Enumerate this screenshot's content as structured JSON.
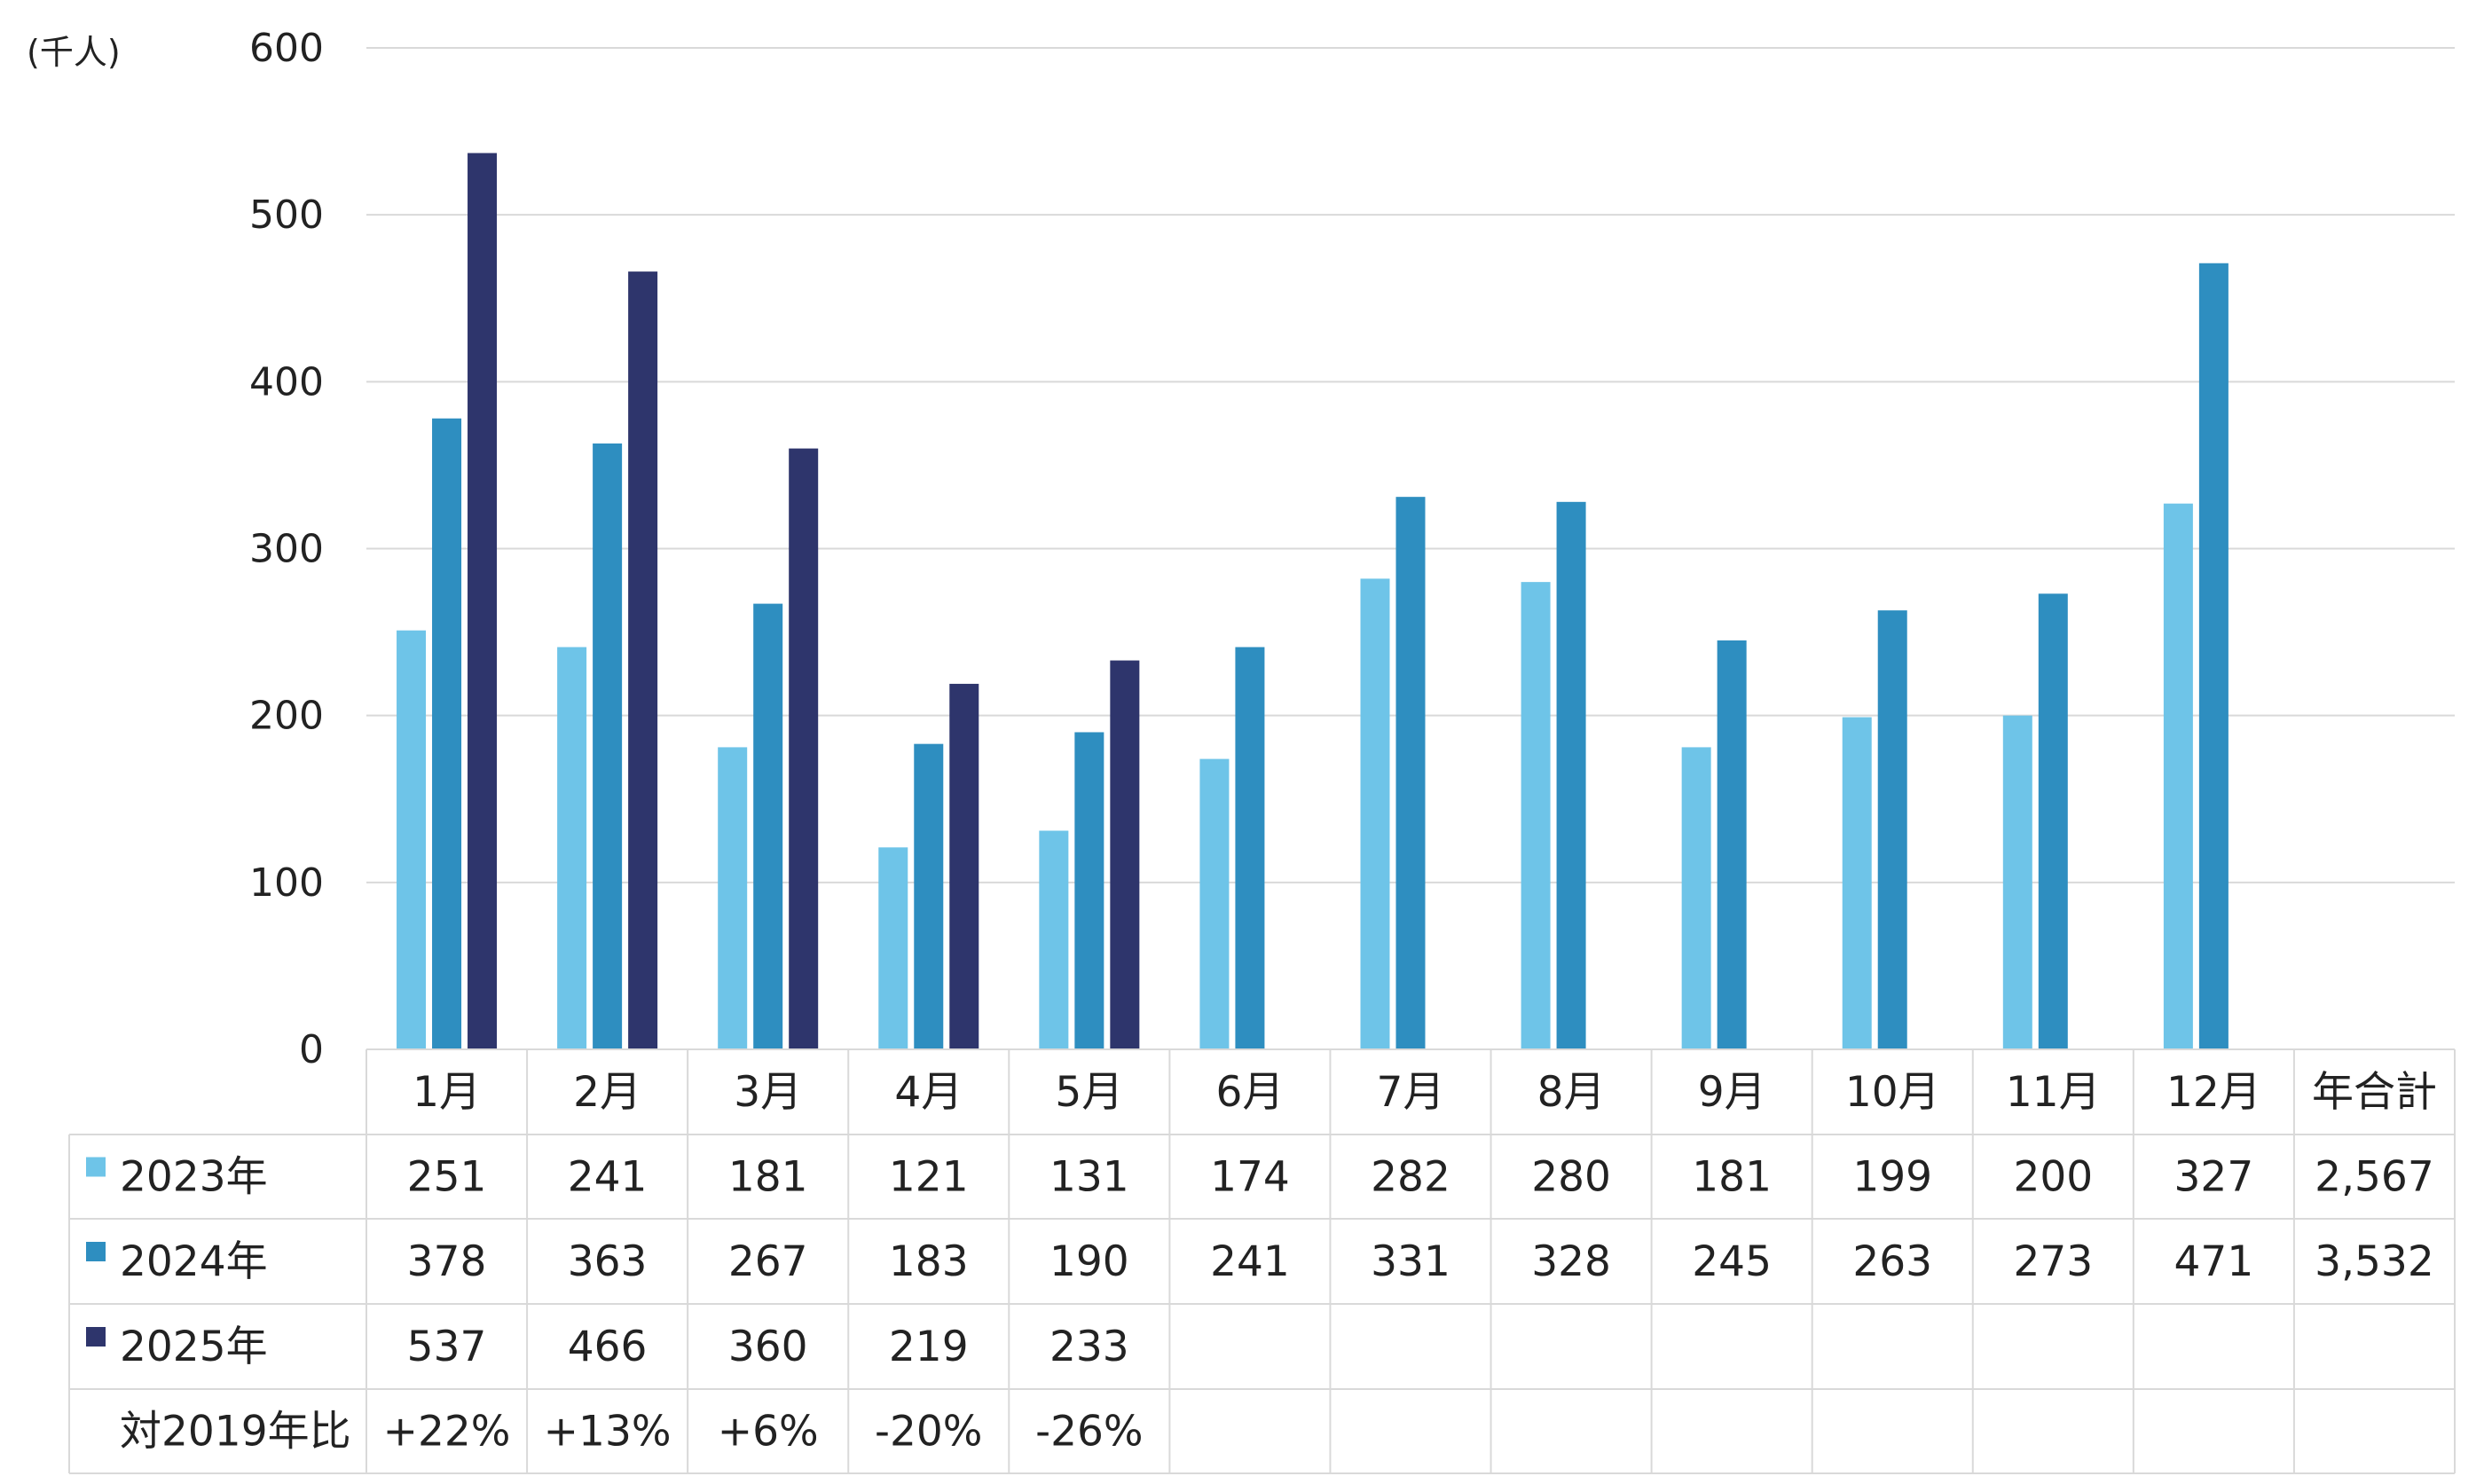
{
  "unit_label": "(千人)",
  "colors": {
    "s2023": "#6ec4e8",
    "s2024": "#2e8ec0",
    "s2025": "#2e356c",
    "grid": "#d9d9d9",
    "table_border": "#d9d9d9"
  },
  "chart_data": {
    "type": "bar",
    "categories": [
      "1月",
      "2月",
      "3月",
      "4月",
      "5月",
      "6月",
      "7月",
      "8月",
      "9月",
      "10月",
      "11月",
      "12月"
    ],
    "series": [
      {
        "name": "2023年",
        "values": [
          251,
          241,
          181,
          121,
          131,
          174,
          282,
          280,
          181,
          199,
          200,
          327
        ]
      },
      {
        "name": "2024年",
        "values": [
          378,
          363,
          267,
          183,
          190,
          241,
          331,
          328,
          245,
          263,
          273,
          471
        ]
      },
      {
        "name": "2025年",
        "values": [
          537,
          466,
          360,
          219,
          233,
          null,
          null,
          null,
          null,
          null,
          null,
          null
        ]
      }
    ],
    "ylim": [
      0,
      600
    ],
    "yticks": [
      "0",
      "100",
      "200",
      "300",
      "400",
      "500",
      "600"
    ],
    "grid": true,
    "legend": "table"
  },
  "table": {
    "total_header": "年合計",
    "rows": [
      {
        "label": "2023年",
        "cells": [
          "251",
          "241",
          "181",
          "121",
          "131",
          "174",
          "282",
          "280",
          "181",
          "199",
          "200",
          "327",
          "2,567"
        ]
      },
      {
        "label": "2024年",
        "cells": [
          "378",
          "363",
          "267",
          "183",
          "190",
          "241",
          "331",
          "328",
          "245",
          "263",
          "273",
          "471",
          "3,532"
        ]
      },
      {
        "label": "2025年",
        "cells": [
          "537",
          "466",
          "360",
          "219",
          "233",
          "",
          "",
          "",
          "",
          "",
          "",
          "",
          ""
        ]
      },
      {
        "label": "対2019年比",
        "cells": [
          "+22%",
          "+13%",
          "+6%",
          "-20%",
          "-26%",
          "",
          "",
          "",
          "",
          "",
          "",
          "",
          ""
        ]
      }
    ]
  }
}
